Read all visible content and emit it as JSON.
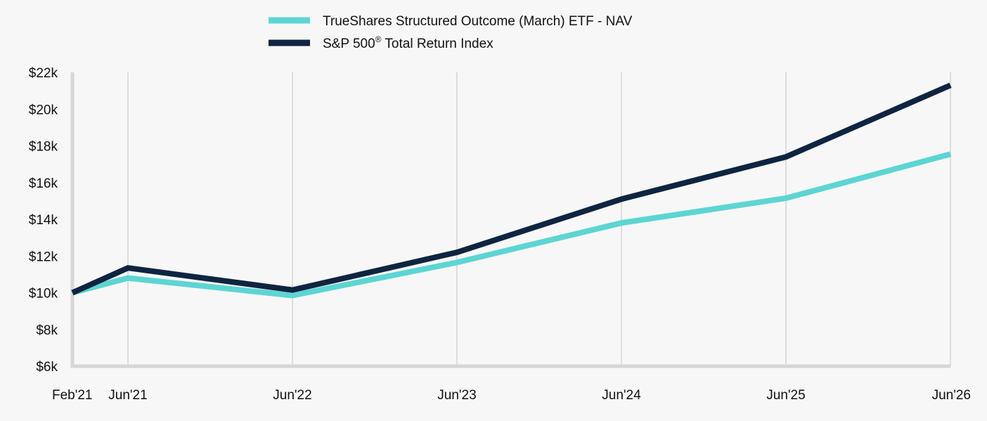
{
  "chart_data": {
    "type": "line",
    "title": "",
    "xlabel": "",
    "ylabel": "",
    "categories": [
      "Feb'21",
      "Jun'21",
      "Jun'22",
      "Jun'23",
      "Jun'24",
      "Jun'25",
      "Jun'26"
    ],
    "x_tick_labels": [
      "Feb'21",
      "Jun'21",
      "Jun'22",
      "Jun'23",
      "Jun'24",
      "Jun'25",
      "Jun'26"
    ],
    "y_ticks": [
      6000,
      8000,
      10000,
      12000,
      14000,
      16000,
      18000,
      20000,
      22000
    ],
    "y_tick_labels": [
      "$6k",
      "$8k",
      "$10k",
      "$12k",
      "$14k",
      "$16k",
      "$18k",
      "$20k",
      "$22k"
    ],
    "ylim": [
      6000,
      22000
    ],
    "grid": "vertical",
    "legend_position": "top-center",
    "series": [
      {
        "name": "TrueShares Structured Outcome (March) ETF - NAV",
        "color": "#5dd5d3",
        "values": [
          10000,
          10800,
          9850,
          11650,
          13800,
          15150,
          17550
        ]
      },
      {
        "name": "S&P 500® Total Return Index",
        "color": "#0e2440",
        "values": [
          10000,
          11350,
          10150,
          12200,
          15100,
          17400,
          21300
        ]
      }
    ]
  }
}
